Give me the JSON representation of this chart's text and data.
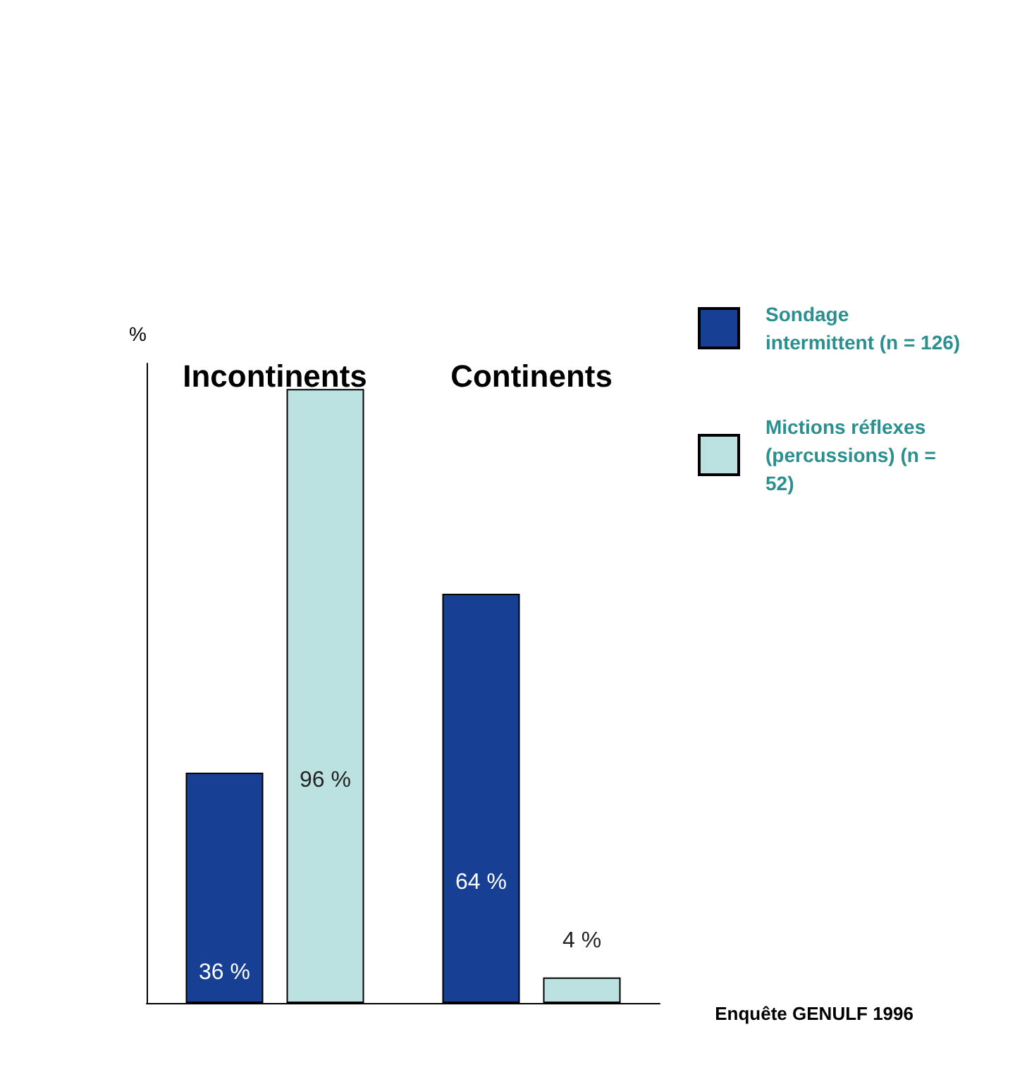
{
  "chart_data": {
    "type": "bar",
    "ylabel": "%",
    "categories": [
      "Incontinents",
      "Continents"
    ],
    "series": [
      {
        "name": "Sondage intermittent (n = 126)",
        "color": "#173f93",
        "values": [
          36,
          64
        ],
        "value_labels": [
          "36 %",
          "64 %"
        ]
      },
      {
        "name": "Mictions réflexes (percussions) (n = 52)",
        "color": "#bce1e1",
        "values": [
          96,
          4
        ],
        "value_labels": [
          "96 %",
          "4 %"
        ]
      }
    ],
    "legend": "top right",
    "grid": false,
    "tick_labels": "x",
    "annotations": [
      "Enquête GENULF 1996"
    ]
  }
}
